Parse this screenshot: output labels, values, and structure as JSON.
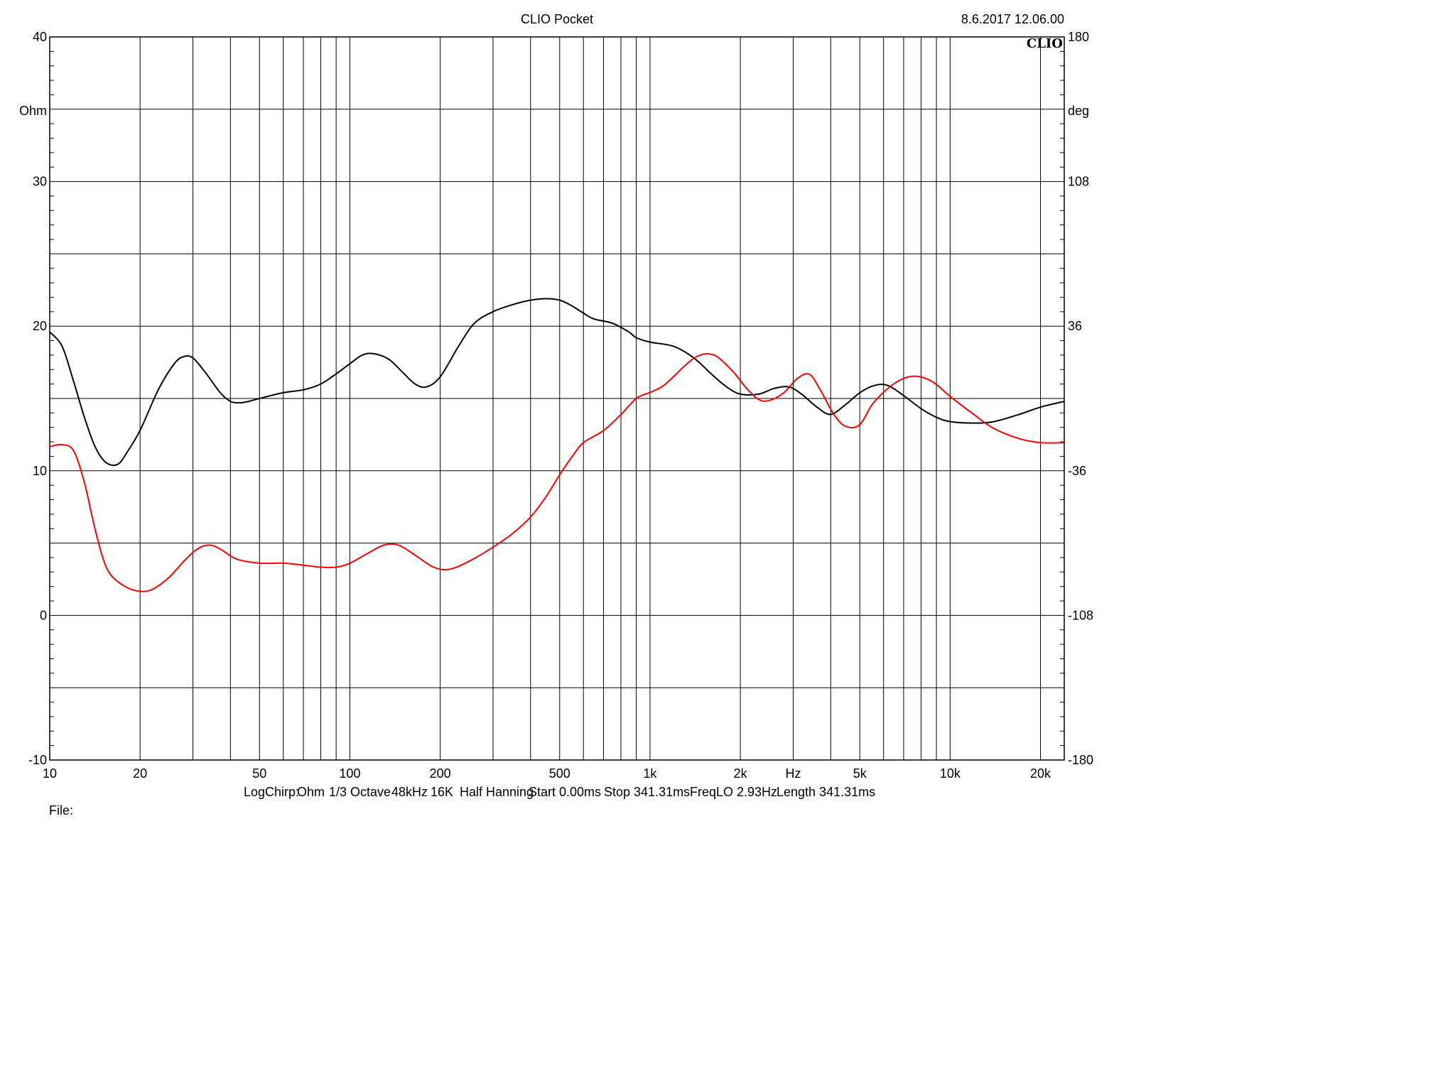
{
  "header": {
    "title": "CLIO Pocket",
    "timestamp": "8.6.2017 12.06.00",
    "brand": "CLIO"
  },
  "chart_data": {
    "type": "line",
    "x_scale": "log",
    "xlim": [
      10,
      24000
    ],
    "x_tick_labels": [
      {
        "value": 10,
        "label": "10"
      },
      {
        "value": 20,
        "label": "20"
      },
      {
        "value": 50,
        "label": "50"
      },
      {
        "value": 100,
        "label": "100"
      },
      {
        "value": 200,
        "label": "200"
      },
      {
        "value": 500,
        "label": "500"
      },
      {
        "value": 1000,
        "label": "1k"
      },
      {
        "value": 2000,
        "label": "2k"
      },
      {
        "value": 5000,
        "label": "5k"
      },
      {
        "value": 10000,
        "label": "10k"
      },
      {
        "value": 20000,
        "label": "20k"
      }
    ],
    "x_unit_label": "Hz",
    "x_unit_pos": 3000,
    "ylim_left": [
      -10,
      40
    ],
    "ylim_right": [
      -180,
      180
    ],
    "y_left_unit": "Ohm",
    "y_right_unit": "deg",
    "y_left_tick_labels": [
      40,
      30,
      20,
      10,
      0,
      -10
    ],
    "y_right_tick_labels": [
      180,
      108,
      36,
      -36,
      -108,
      -180
    ],
    "grid": true,
    "series": [
      {
        "axis": "left",
        "color": "#000000",
        "points": [
          [
            10,
            19.6
          ],
          [
            11,
            18.6
          ],
          [
            12,
            16.2
          ],
          [
            13,
            13.8
          ],
          [
            14,
            11.9
          ],
          [
            15,
            10.8
          ],
          [
            16,
            10.4
          ],
          [
            17,
            10.5
          ],
          [
            18,
            11.2
          ],
          [
            20,
            12.8
          ],
          [
            23,
            15.6
          ],
          [
            26,
            17.4
          ],
          [
            28,
            17.9
          ],
          [
            30,
            17.8
          ],
          [
            33,
            16.8
          ],
          [
            37,
            15.4
          ],
          [
            40,
            14.8
          ],
          [
            43,
            14.7
          ],
          [
            46,
            14.8
          ],
          [
            50,
            15.0
          ],
          [
            60,
            15.4
          ],
          [
            70,
            15.6
          ],
          [
            80,
            16.0
          ],
          [
            90,
            16.7
          ],
          [
            100,
            17.4
          ],
          [
            110,
            18.0
          ],
          [
            120,
            18.1
          ],
          [
            135,
            17.7
          ],
          [
            150,
            16.8
          ],
          [
            165,
            16.0
          ],
          [
            180,
            15.8
          ],
          [
            200,
            16.5
          ],
          [
            230,
            18.6
          ],
          [
            260,
            20.2
          ],
          [
            300,
            21.0
          ],
          [
            350,
            21.5
          ],
          [
            400,
            21.8
          ],
          [
            450,
            21.9
          ],
          [
            500,
            21.8
          ],
          [
            550,
            21.4
          ],
          [
            600,
            20.9
          ],
          [
            650,
            20.5
          ],
          [
            750,
            20.2
          ],
          [
            850,
            19.6
          ],
          [
            900,
            19.2
          ],
          [
            1000,
            18.9
          ],
          [
            1200,
            18.6
          ],
          [
            1400,
            17.8
          ],
          [
            1600,
            16.7
          ],
          [
            1800,
            15.8
          ],
          [
            2000,
            15.3
          ],
          [
            2300,
            15.3
          ],
          [
            2600,
            15.7
          ],
          [
            2900,
            15.8
          ],
          [
            3200,
            15.3
          ],
          [
            3600,
            14.4
          ],
          [
            4000,
            13.9
          ],
          [
            4500,
            14.6
          ],
          [
            5000,
            15.4
          ],
          [
            5600,
            15.9
          ],
          [
            6200,
            15.9
          ],
          [
            7000,
            15.2
          ],
          [
            8000,
            14.3
          ],
          [
            9000,
            13.7
          ],
          [
            10000,
            13.4
          ],
          [
            12000,
            13.3
          ],
          [
            14000,
            13.4
          ],
          [
            17000,
            13.9
          ],
          [
            20000,
            14.4
          ],
          [
            24000,
            14.8
          ]
        ]
      },
      {
        "axis": "right",
        "color": "#ff0000",
        "points": [
          [
            10,
            -24.0
          ],
          [
            11,
            -23.0
          ],
          [
            12,
            -26.0
          ],
          [
            13,
            -41.0
          ],
          [
            14,
            -62.0
          ],
          [
            15,
            -79.0
          ],
          [
            16,
            -88.0
          ],
          [
            18,
            -94.0
          ],
          [
            20,
            -96.0
          ],
          [
            22,
            -95.0
          ],
          [
            25,
            -89.0
          ],
          [
            28,
            -81.0
          ],
          [
            31,
            -75.0
          ],
          [
            34,
            -73.0
          ],
          [
            37,
            -75.0
          ],
          [
            42,
            -80.0
          ],
          [
            50,
            -82.0
          ],
          [
            60,
            -82.0
          ],
          [
            70,
            -83.0
          ],
          [
            80,
            -84.0
          ],
          [
            90,
            -84.0
          ],
          [
            100,
            -82.0
          ],
          [
            115,
            -77.0
          ],
          [
            130,
            -73.0
          ],
          [
            145,
            -73.0
          ],
          [
            165,
            -78.0
          ],
          [
            190,
            -84.0
          ],
          [
            215,
            -85.0
          ],
          [
            250,
            -81.0
          ],
          [
            300,
            -74.0
          ],
          [
            350,
            -67.0
          ],
          [
            400,
            -59.0
          ],
          [
            450,
            -49.0
          ],
          [
            500,
            -38.0
          ],
          [
            550,
            -29.0
          ],
          [
            600,
            -22.0
          ],
          [
            700,
            -16.0
          ],
          [
            800,
            -8.0
          ],
          [
            900,
            0.0
          ],
          [
            1000,
            3.0
          ],
          [
            1100,
            6.0
          ],
          [
            1200,
            11.0
          ],
          [
            1300,
            16.0
          ],
          [
            1400,
            20.0
          ],
          [
            1500,
            22.0
          ],
          [
            1600,
            22.0
          ],
          [
            1700,
            20.0
          ],
          [
            1900,
            13.0
          ],
          [
            2100,
            5.0
          ],
          [
            2300,
            -0.5
          ],
          [
            2500,
            -1.0
          ],
          [
            2800,
            3.0
          ],
          [
            3100,
            10.0
          ],
          [
            3400,
            12.0
          ],
          [
            3700,
            4.0
          ],
          [
            4100,
            -8.0
          ],
          [
            4500,
            -14.0
          ],
          [
            5000,
            -13.0
          ],
          [
            5500,
            -3.0
          ],
          [
            6200,
            5.0
          ],
          [
            7000,
            10.0
          ],
          [
            7800,
            11.0
          ],
          [
            8800,
            8.0
          ],
          [
            10000,
            1.0
          ],
          [
            12000,
            -8.0
          ],
          [
            14000,
            -15.0
          ],
          [
            17000,
            -20.0
          ],
          [
            20000,
            -22.0
          ],
          [
            24000,
            -22.0
          ]
        ]
      }
    ]
  },
  "footer": {
    "params": [
      {
        "text": "LogChirp:",
        "x": 343
      },
      {
        "text": "Ohm",
        "x": 418
      },
      {
        "text": "1/3 Octave",
        "x": 463
      },
      {
        "text": "48kHz",
        "x": 551
      },
      {
        "text": "16K",
        "x": 606
      },
      {
        "text": "Half Hanning",
        "x": 647
      },
      {
        "text": "Start 0.00ms",
        "x": 744
      },
      {
        "text": "Stop 341.31ms",
        "x": 850
      },
      {
        "text": "FreqLO 2.93Hz",
        "x": 971
      },
      {
        "text": "Length 341.31ms",
        "x": 1093
      }
    ],
    "file_label": "File:"
  }
}
